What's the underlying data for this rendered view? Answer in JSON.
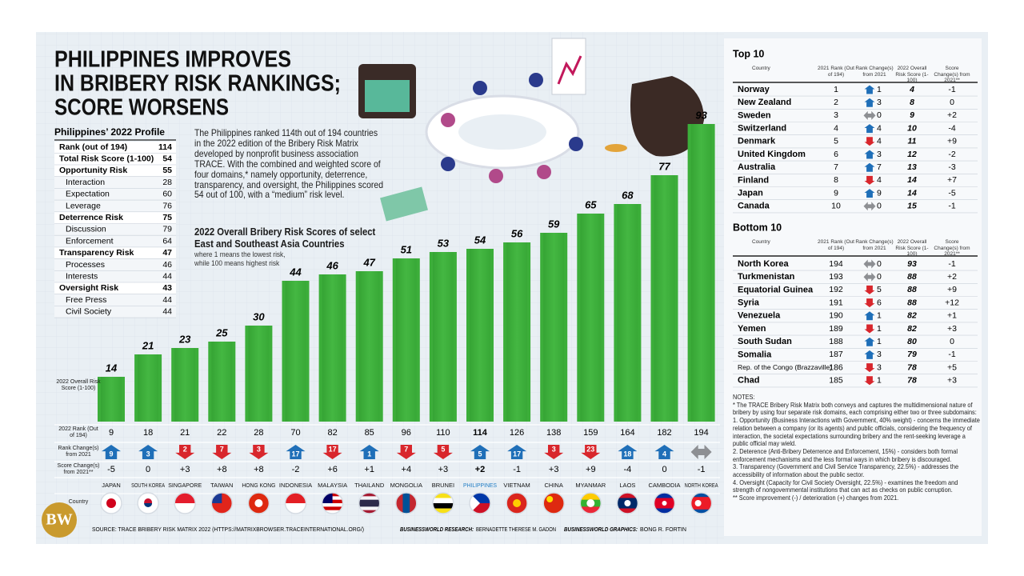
{
  "header": {
    "title_lines": [
      "PHILIPPINES IMPROVES",
      "IN BRIBERY RISK RANKINGS;",
      "SCORE WORSENS"
    ]
  },
  "profile": {
    "title": "Philippines’ 2022 Profile",
    "summary": [
      [
        "Rank (out of 194)",
        114
      ],
      [
        "Total Risk Score (1-100)",
        54
      ]
    ],
    "domains": [
      {
        "name": "Opportunity Risk",
        "score": 55,
        "subs": [
          [
            "Interaction",
            28
          ],
          [
            "Expectation",
            60
          ],
          [
            "Leverage",
            76
          ]
        ]
      },
      {
        "name": "Deterrence Risk",
        "score": 75,
        "subs": [
          [
            "Discussion",
            79
          ],
          [
            "Enforcement",
            64
          ]
        ]
      },
      {
        "name": "Transparency Risk",
        "score": 47,
        "subs": [
          [
            "Processes",
            46
          ],
          [
            "Interests",
            44
          ]
        ]
      },
      {
        "name": "Oversight Risk",
        "score": 43,
        "subs": [
          [
            "Free Press",
            44
          ],
          [
            "Civil Society",
            44
          ]
        ]
      }
    ]
  },
  "intro": "The Philippines ranked 114th out of 194 countries in the 2022 edition of the Bribery Risk Matrix developed by nonprofit business association TRACE. With the combined and weighted score of four domains,* namely opportunity, deterrence, transparency, and oversight, the Philippines scored 54 out of 100, with a “medium” risk level.",
  "chart_data": {
    "type": "bar",
    "title": "2022 Overall Bribery Risk Scores of select East and Southeast Asia Countries",
    "subtitle": "where 1 means the lowest risk, while 100 means highest risk",
    "y_label": "2022 Overall Risk Score (1-100)",
    "categories": [
      "JAPAN",
      "SOUTH KOREA",
      "SINGAPORE",
      "TAIWAN",
      "HONG KONG",
      "INDONESIA",
      "MALAYSIA",
      "THAILAND",
      "MONGOLIA",
      "BRUNEI",
      "PHILIPPINES",
      "VIETNAM",
      "CHINA",
      "MYANMAR",
      "LAOS",
      "CAMBODIA",
      "NORTH KOREA"
    ],
    "values": [
      14,
      21,
      23,
      25,
      30,
      44,
      46,
      47,
      51,
      53,
      54,
      56,
      59,
      65,
      68,
      77,
      93
    ],
    "color": "#3cae3a",
    "highlight_category": "PHILIPPINES",
    "highlight_color": "#1f7cc4",
    "rows": [
      {
        "label": "2022 Rank (Out of 194)",
        "values": [
          9,
          18,
          21,
          22,
          28,
          70,
          82,
          85,
          96,
          110,
          114,
          126,
          138,
          159,
          164,
          182,
          194
        ]
      },
      {
        "label": "Rank Change(s) from 2021",
        "values": [
          9,
          3,
          2,
          7,
          3,
          17,
          17,
          1,
          7,
          5,
          5,
          17,
          3,
          23,
          18,
          4,
          null
        ],
        "directions": [
          "up",
          "up",
          "down",
          "down",
          "down",
          "up",
          "down",
          "up",
          "down",
          "down",
          "up",
          "up",
          "down",
          "down",
          "up",
          "up",
          "same"
        ]
      },
      {
        "label": "Score Change(s) from 2021**",
        "values": [
          "-5",
          "0",
          "+3",
          "+8",
          "+8",
          "-2",
          "+6",
          "+1",
          "+4",
          "+3",
          "+2",
          "-1",
          "+3",
          "+9",
          "-4",
          "0",
          "-1"
        ]
      },
      {
        "label": "Country"
      }
    ]
  },
  "tables": {
    "columns": [
      "Country",
      "2021 Rank (Out of 194)",
      "Rank Change(s) from 2021",
      "2022 Overall Risk Score (1-100)",
      "Score Change(s) from 2021**"
    ],
    "top": {
      "title": "Top 10",
      "rows": [
        {
          "country": "Norway",
          "rank": 1,
          "direction": "up",
          "change": 1,
          "score": 4,
          "score_change": "-1"
        },
        {
          "country": "New Zealand",
          "rank": 2,
          "direction": "up",
          "change": 3,
          "score": 8,
          "score_change": "0"
        },
        {
          "country": "Sweden",
          "rank": 3,
          "direction": "same",
          "change": 0,
          "score": 9,
          "score_change": "+2"
        },
        {
          "country": "Switzerland",
          "rank": 4,
          "direction": "up",
          "change": 4,
          "score": 10,
          "score_change": "-4"
        },
        {
          "country": "Denmark",
          "rank": 5,
          "direction": "down",
          "change": 4,
          "score": 11,
          "score_change": "+9"
        },
        {
          "country": "United Kingdom",
          "rank": 6,
          "direction": "up",
          "change": 3,
          "score": 12,
          "score_change": "-2"
        },
        {
          "country": "Australia",
          "rank": 7,
          "direction": "up",
          "change": 7,
          "score": 13,
          "score_change": "-3"
        },
        {
          "country": "Finland",
          "rank": 8,
          "direction": "down",
          "change": 4,
          "score": 14,
          "score_change": "+7"
        },
        {
          "country": "Japan",
          "rank": 9,
          "direction": "up",
          "change": 9,
          "score": 14,
          "score_change": "-5"
        },
        {
          "country": "Canada",
          "rank": 10,
          "direction": "same",
          "change": 0,
          "score": 15,
          "score_change": "-1"
        }
      ]
    },
    "bottom": {
      "title": "Bottom 10",
      "rows": [
        {
          "country": "North Korea",
          "rank": 194,
          "direction": "same",
          "change": 0,
          "score": 93,
          "score_change": "-1"
        },
        {
          "country": "Turkmenistan",
          "rank": 193,
          "direction": "same",
          "change": 0,
          "score": 88,
          "score_change": "+2"
        },
        {
          "country": "Equatorial Guinea",
          "rank": 192,
          "direction": "down",
          "change": 5,
          "score": 88,
          "score_change": "+9"
        },
        {
          "country": "Syria",
          "rank": 191,
          "direction": "down",
          "change": 6,
          "score": 88,
          "score_change": "+12"
        },
        {
          "country": "Venezuela",
          "rank": 190,
          "direction": "up",
          "change": 1,
          "score": 82,
          "score_change": "+1"
        },
        {
          "country": "Yemen",
          "rank": 189,
          "direction": "down",
          "change": 1,
          "score": 82,
          "score_change": "+3"
        },
        {
          "country": "South Sudan",
          "rank": 188,
          "direction": "up",
          "change": 1,
          "score": 80,
          "score_change": "0"
        },
        {
          "country": "Somalia",
          "rank": 187,
          "direction": "up",
          "change": 3,
          "score": 79,
          "score_change": "-1"
        },
        {
          "country": "Rep. of the Congo (Brazzaville)",
          "rank": 186,
          "direction": "down",
          "change": 3,
          "score": 78,
          "score_change": "+5"
        },
        {
          "country": "Chad",
          "rank": 185,
          "direction": "down",
          "change": 1,
          "score": 78,
          "score_change": "+3"
        }
      ]
    }
  },
  "notes": {
    "title": "NOTES:",
    "items": [
      "* The TRACE Bribery Risk Matrix both conveys and captures the multidimensional nature of bribery by using four separate risk domains, each comprising either two or three subdomains:",
      "1. Opportunity (Business Interactions with Government, 40% weight) - concerns the immediate relation between a company (or its agents) and public officials, considering the frequency of interaction, the societal expectations surrounding bribery and the rent-seeking leverage a public official may wield.",
      "2. Deterence (Anti-Bribery Deterrence and Enforcement, 15%) - considers both formal enforcement mechanisms and the less formal ways in which bribery is discouraged.",
      "3. Transparency (Government and Civil Service Transparency, 22.5%) - addresses the accessibility of information about the public sector.",
      "4. Oversight (Capacity for Civil Society Oversight, 22.5%) - examines the freedom and strength of nongovernmental institutions that can act as checks on public corruption.",
      "** Score improvement (-) / deterioration (+) changes from 2021."
    ]
  },
  "footer": {
    "logo": "BW",
    "source": "SOURCE: TRACE BRIBERY RISK MATRIX 2022 (HTTPS://MATRIXBROWSER.TRACEINTERNATIONAL.ORG/)",
    "research": {
      "label": "BUSINESSWORLD RESEARCH:",
      "text": "BERNADETTE THERESE M. GADON"
    },
    "graphics": {
      "label": "BUSINESSWORLD GRAPHICS:",
      "text": "BONG R. FORTIN"
    }
  }
}
